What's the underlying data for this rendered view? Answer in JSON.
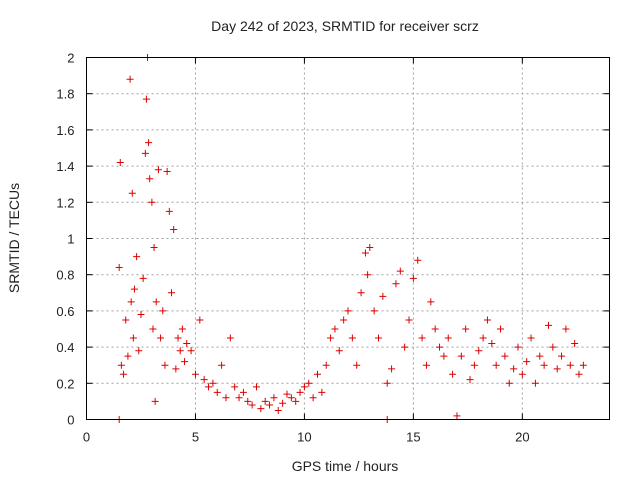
{
  "chart_data": {
    "type": "scatter",
    "title": "Day 242 of 2023, SRMTID for receiver scrz",
    "xlabel": "GPS time / hours",
    "ylabel": "SRMTID / TECUs",
    "xlim": [
      0,
      24
    ],
    "ylim": [
      0,
      2
    ],
    "xticks": [
      0,
      5,
      10,
      15,
      20
    ],
    "xtick_labels": [
      "0",
      "5",
      "10",
      "15",
      "20"
    ],
    "yticks": [
      0,
      0.2,
      0.4,
      0.6,
      0.8,
      1.0,
      1.2,
      1.4,
      1.6,
      1.8,
      2.0
    ],
    "ytick_labels": [
      "0",
      "0.2",
      "0.4",
      "0.6",
      "0.8",
      "1",
      "1.2",
      "1.4",
      "1.6",
      "1.8",
      "2"
    ],
    "grid": true,
    "marker": "plus",
    "color": "#dd0000",
    "series": [
      {
        "name": "SRMTID",
        "x": [
          1.5,
          1.55,
          1.6,
          1.7,
          1.8,
          1.9,
          2.0,
          2.05,
          2.1,
          2.15,
          2.2,
          2.3,
          2.4,
          2.5,
          2.6,
          2.7,
          2.75,
          2.8,
          2.85,
          2.9,
          3.0,
          3.05,
          3.1,
          3.15,
          3.2,
          3.3,
          3.4,
          3.5,
          3.6,
          3.7,
          3.8,
          3.9,
          4.0,
          4.1,
          4.2,
          4.3,
          4.4,
          4.5,
          4.6,
          4.8,
          5.0,
          5.2,
          5.4,
          5.6,
          5.8,
          6.0,
          6.2,
          6.4,
          6.6,
          6.8,
          7.0,
          7.2,
          7.4,
          7.6,
          7.8,
          8.0,
          8.2,
          8.4,
          8.6,
          8.8,
          9.0,
          9.2,
          9.4,
          9.6,
          9.8,
          10.0,
          10.2,
          10.4,
          10.6,
          10.8,
          11.0,
          11.2,
          11.4,
          11.6,
          11.8,
          12.0,
          12.2,
          12.4,
          12.6,
          12.8,
          12.9,
          13.0,
          13.2,
          13.4,
          13.6,
          13.8,
          14.0,
          14.2,
          14.4,
          14.6,
          14.8,
          15.0,
          15.2,
          15.4,
          15.6,
          15.8,
          16.0,
          16.2,
          16.4,
          16.6,
          16.8,
          17.0,
          17.2,
          17.4,
          17.6,
          17.8,
          18.0,
          18.2,
          18.4,
          18.6,
          18.8,
          19.0,
          19.2,
          19.4,
          19.6,
          19.8,
          20.0,
          20.2,
          20.4,
          20.6,
          20.8,
          21.0,
          21.2,
          21.4,
          21.6,
          21.8,
          22.0,
          22.2,
          22.4,
          22.6,
          22.8,
          1.5,
          13.8
        ],
        "y": [
          0.84,
          1.42,
          0.3,
          0.25,
          0.55,
          0.35,
          1.88,
          0.65,
          1.25,
          0.45,
          0.72,
          0.9,
          0.38,
          0.58,
          0.78,
          1.47,
          1.77,
          2.0,
          1.53,
          1.33,
          1.2,
          0.5,
          0.95,
          0.1,
          0.65,
          1.38,
          0.45,
          0.6,
          0.3,
          1.37,
          1.15,
          0.7,
          1.05,
          0.28,
          0.45,
          0.38,
          0.5,
          0.32,
          0.42,
          0.38,
          0.25,
          0.55,
          0.22,
          0.18,
          0.2,
          0.15,
          0.3,
          0.12,
          0.45,
          0.18,
          0.12,
          0.15,
          0.1,
          0.08,
          0.18,
          0.06,
          0.1,
          0.08,
          0.12,
          0.05,
          0.09,
          0.14,
          0.12,
          0.1,
          0.15,
          0.18,
          0.2,
          0.12,
          0.25,
          0.15,
          0.3,
          0.45,
          0.5,
          0.38,
          0.55,
          0.6,
          0.45,
          0.3,
          0.7,
          0.92,
          0.8,
          0.95,
          0.6,
          0.45,
          0.68,
          0.2,
          0.28,
          0.75,
          0.82,
          0.4,
          0.55,
          0.78,
          0.88,
          0.45,
          0.3,
          0.65,
          0.5,
          0.4,
          0.35,
          0.45,
          0.25,
          0.02,
          0.35,
          0.5,
          0.22,
          0.3,
          0.38,
          0.45,
          0.55,
          0.42,
          0.3,
          0.5,
          0.35,
          0.2,
          0.28,
          0.4,
          0.25,
          0.32,
          0.45,
          0.2,
          0.35,
          0.3,
          0.52,
          0.4,
          0.28,
          0.35,
          0.5,
          0.3,
          0.42,
          0.25,
          0.3,
          0.0,
          0.0
        ]
      }
    ]
  }
}
